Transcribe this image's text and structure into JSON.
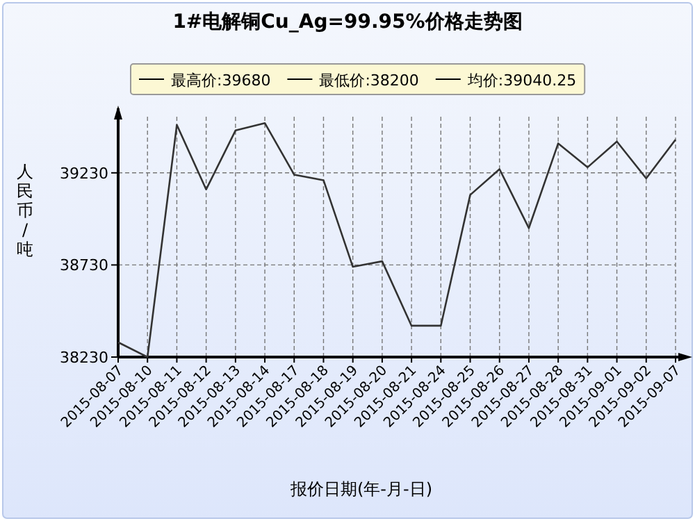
{
  "chart_data": {
    "type": "line",
    "title": "1#电解铜Cu_Ag=99.95%价格走势图",
    "xlabel": "报价日期(年-月-日)",
    "ylabel": "人民币/吨",
    "annotations": [
      "最高价:39680",
      "最低价:38200",
      "均价:39040.25"
    ],
    "categories": [
      "2015-08-07",
      "2015-08-10",
      "2015-08-11",
      "2015-08-12",
      "2015-08-13",
      "2015-08-14",
      "2015-08-17",
      "2015-08-18",
      "2015-08-19",
      "2015-08-20",
      "2015-08-21",
      "2015-08-24",
      "2015-08-25",
      "2015-08-26",
      "2015-08-27",
      "2015-08-28",
      "2015-08-31",
      "2015-09-01",
      "2015-09-02",
      "2015-09-07"
    ],
    "series": [
      {
        "color": "#333333",
        "values": [
          38310,
          38230,
          39490,
          39140,
          39460,
          39500,
          39220,
          39190,
          38720,
          38750,
          38400,
          38400,
          39110,
          39250,
          38930,
          39390,
          39260,
          39400,
          39200,
          39410
        ]
      }
    ],
    "ylim": [
      38230,
      39580
    ],
    "yticks": [
      38230,
      38730,
      39230
    ],
    "grid": true,
    "marker": "none",
    "line_style": "solid"
  }
}
